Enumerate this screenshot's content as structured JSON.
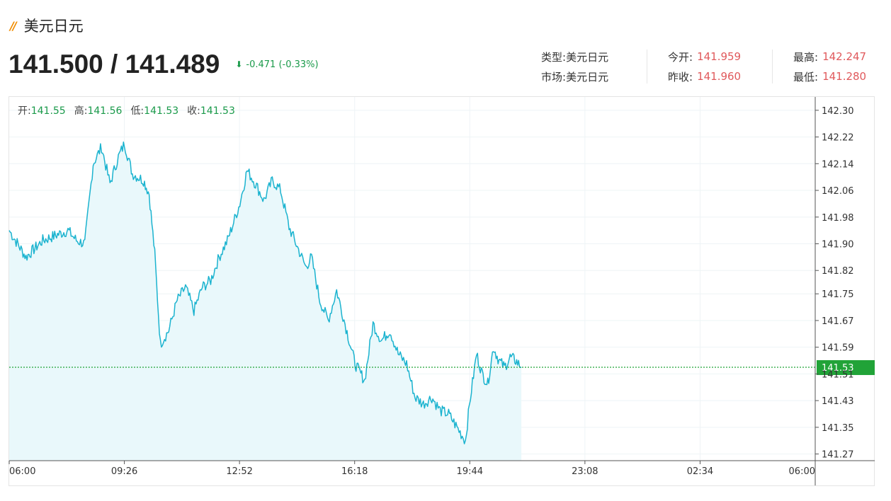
{
  "header": {
    "title": "美元日元",
    "price": "141.500 / 141.489",
    "change": "-0.471 (-0.33%)"
  },
  "info": {
    "type_label": "类型:",
    "type_value": "美元日元",
    "market_label": "市场:",
    "market_value": "美元日元",
    "open_label": "今开:",
    "open_value": "141.959",
    "prev_close_label": "昨收:",
    "prev_close_value": "141.960",
    "high_label": "最高:",
    "high_value": "142.247",
    "low_label": "最低:",
    "low_value": "141.280"
  },
  "ohlc": {
    "open_label": "开:",
    "open_value": "141.55",
    "high_label": "高:",
    "high_value": "141.56",
    "low_label": "低:",
    "low_value": "141.53",
    "close_label": "收:",
    "close_value": "141.53"
  },
  "colors": {
    "line": "#1bb3cf",
    "fill": "#e9f8fb",
    "current_line": "#21a338",
    "current_badge": "#21a338",
    "down": "#1a9a4a",
    "red": "#e0595c"
  },
  "chart_data": {
    "type": "area",
    "x_ticks": [
      "06:00",
      "09:26",
      "12:52",
      "16:18",
      "19:44",
      "23:08",
      "02:34",
      "06:00"
    ],
    "y_ticks": [
      "142.30",
      "142.22",
      "142.14",
      "142.06",
      "141.98",
      "141.90",
      "141.82",
      "141.75",
      "141.67",
      "141.59",
      "141.51",
      "141.43",
      "141.35",
      "141.27"
    ],
    "ylim": [
      141.25,
      142.34
    ],
    "current_value": "141.53",
    "grid": true,
    "x": [
      "06:00",
      "06:30",
      "07:00",
      "07:30",
      "07:45",
      "08:00",
      "08:15",
      "08:30",
      "08:45",
      "09:00",
      "09:15",
      "09:26",
      "09:40",
      "10:00",
      "10:10",
      "10:20",
      "10:30",
      "10:45",
      "11:00",
      "11:15",
      "11:30",
      "11:45",
      "12:00",
      "12:15",
      "12:30",
      "12:52",
      "13:05",
      "13:20",
      "13:35",
      "13:50",
      "14:05",
      "14:20",
      "14:35",
      "14:50",
      "15:00",
      "15:15",
      "15:30",
      "15:45",
      "16:00",
      "16:18",
      "16:35",
      "16:50",
      "17:05",
      "17:20",
      "17:35",
      "17:50",
      "18:05",
      "18:20",
      "18:35",
      "18:50",
      "19:05",
      "19:20",
      "19:35",
      "19:44",
      "19:55",
      "20:05",
      "20:15",
      "20:25",
      "20:35",
      "20:45",
      "20:55",
      "21:05",
      "21:15"
    ],
    "y": [
      141.94,
      141.86,
      141.91,
      141.93,
      141.94,
      141.91,
      141.9,
      142.14,
      142.19,
      142.08,
      142.16,
      142.2,
      142.11,
      142.09,
      142.05,
      141.87,
      141.6,
      141.64,
      141.73,
      141.77,
      141.7,
      141.77,
      141.79,
      141.86,
      141.91,
      142.02,
      142.12,
      142.08,
      142.03,
      142.09,
      142.06,
      141.95,
      141.89,
      141.83,
      141.86,
      141.73,
      141.67,
      141.76,
      141.66,
      141.54,
      141.49,
      141.66,
      141.61,
      141.64,
      141.57,
      141.54,
      141.44,
      141.42,
      141.44,
      141.4,
      141.39,
      141.35,
      141.31,
      141.44,
      141.57,
      141.51,
      141.48,
      141.59,
      141.55,
      141.53,
      141.56,
      141.55,
      141.53
    ]
  }
}
